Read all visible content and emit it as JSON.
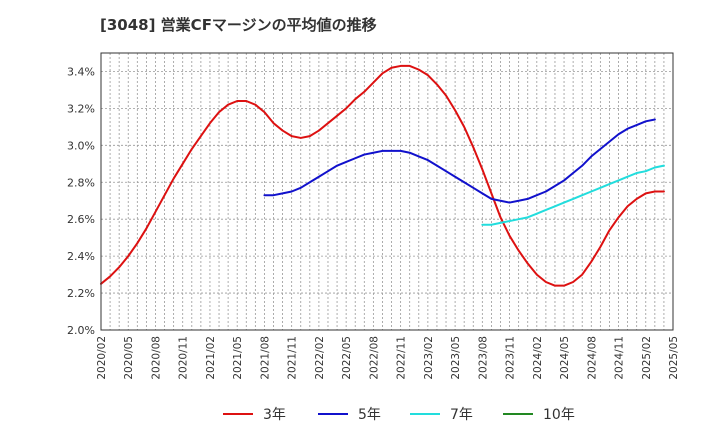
{
  "chart_data": {
    "type": "line",
    "title": "[3048]  営業CFマージンの平均値の推移",
    "xlabel": "",
    "ylabel": "",
    "x_start": "2020/02",
    "x_end": "2025/05",
    "x_ticks": [
      "2020/02",
      "2020/05",
      "2020/08",
      "2020/11",
      "2021/02",
      "2021/05",
      "2021/08",
      "2021/11",
      "2022/02",
      "2022/05",
      "2022/08",
      "2022/11",
      "2023/02",
      "2023/05",
      "2023/08",
      "2023/11",
      "2024/02",
      "2024/05",
      "2024/08",
      "2024/11",
      "2025/02",
      "2025/05"
    ],
    "y_ticks": [
      "2.0%",
      "2.2%",
      "2.4%",
      "2.6%",
      "2.8%",
      "3.0%",
      "3.2%",
      "3.4%"
    ],
    "ylim": [
      2.0,
      3.5
    ],
    "grid": true,
    "legend_placement": "bottom",
    "series": [
      {
        "name": "3年",
        "color": "#dd1111",
        "points": [
          [
            "2020/02",
            2.25
          ],
          [
            "2020/03",
            2.29
          ],
          [
            "2020/04",
            2.34
          ],
          [
            "2020/05",
            2.4
          ],
          [
            "2020/06",
            2.47
          ],
          [
            "2020/07",
            2.55
          ],
          [
            "2020/08",
            2.64
          ],
          [
            "2020/09",
            2.73
          ],
          [
            "2020/10",
            2.82
          ],
          [
            "2020/11",
            2.9
          ],
          [
            "2020/12",
            2.98
          ],
          [
            "2021/01",
            3.05
          ],
          [
            "2021/02",
            3.12
          ],
          [
            "2021/03",
            3.18
          ],
          [
            "2021/04",
            3.22
          ],
          [
            "2021/05",
            3.24
          ],
          [
            "2021/06",
            3.24
          ],
          [
            "2021/07",
            3.22
          ],
          [
            "2021/08",
            3.18
          ],
          [
            "2021/09",
            3.12
          ],
          [
            "2021/10",
            3.08
          ],
          [
            "2021/11",
            3.05
          ],
          [
            "2021/12",
            3.04
          ],
          [
            "2022/01",
            3.05
          ],
          [
            "2022/02",
            3.08
          ],
          [
            "2022/03",
            3.12
          ],
          [
            "2022/04",
            3.16
          ],
          [
            "2022/05",
            3.2
          ],
          [
            "2022/06",
            3.25
          ],
          [
            "2022/07",
            3.29
          ],
          [
            "2022/08",
            3.34
          ],
          [
            "2022/09",
            3.39
          ],
          [
            "2022/10",
            3.42
          ],
          [
            "2022/11",
            3.43
          ],
          [
            "2022/12",
            3.43
          ],
          [
            "2023/01",
            3.41
          ],
          [
            "2023/02",
            3.38
          ],
          [
            "2023/03",
            3.33
          ],
          [
            "2023/04",
            3.27
          ],
          [
            "2023/05",
            3.19
          ],
          [
            "2023/06",
            3.1
          ],
          [
            "2023/07",
            2.99
          ],
          [
            "2023/08",
            2.87
          ],
          [
            "2023/09",
            2.74
          ],
          [
            "2023/10",
            2.61
          ],
          [
            "2023/11",
            2.51
          ],
          [
            "2023/12",
            2.43
          ],
          [
            "2024/01",
            2.36
          ],
          [
            "2024/02",
            2.3
          ],
          [
            "2024/03",
            2.26
          ],
          [
            "2024/04",
            2.24
          ],
          [
            "2024/05",
            2.24
          ],
          [
            "2024/06",
            2.26
          ],
          [
            "2024/07",
            2.3
          ],
          [
            "2024/08",
            2.37
          ],
          [
            "2024/09",
            2.45
          ],
          [
            "2024/10",
            2.54
          ],
          [
            "2024/11",
            2.61
          ],
          [
            "2024/12",
            2.67
          ],
          [
            "2025/01",
            2.71
          ],
          [
            "2025/02",
            2.74
          ],
          [
            "2025/03",
            2.75
          ],
          [
            "2025/04",
            2.75
          ]
        ]
      },
      {
        "name": "5年",
        "color": "#1111cc",
        "points": [
          [
            "2021/08",
            2.73
          ],
          [
            "2021/09",
            2.73
          ],
          [
            "2021/10",
            2.74
          ],
          [
            "2021/11",
            2.75
          ],
          [
            "2021/12",
            2.77
          ],
          [
            "2022/01",
            2.8
          ],
          [
            "2022/02",
            2.83
          ],
          [
            "2022/03",
            2.86
          ],
          [
            "2022/04",
            2.89
          ],
          [
            "2022/05",
            2.91
          ],
          [
            "2022/06",
            2.93
          ],
          [
            "2022/07",
            2.95
          ],
          [
            "2022/08",
            2.96
          ],
          [
            "2022/09",
            2.97
          ],
          [
            "2022/10",
            2.97
          ],
          [
            "2022/11",
            2.97
          ],
          [
            "2022/12",
            2.96
          ],
          [
            "2023/01",
            2.94
          ],
          [
            "2023/02",
            2.92
          ],
          [
            "2023/03",
            2.89
          ],
          [
            "2023/04",
            2.86
          ],
          [
            "2023/05",
            2.83
          ],
          [
            "2023/06",
            2.8
          ],
          [
            "2023/07",
            2.77
          ],
          [
            "2023/08",
            2.74
          ],
          [
            "2023/09",
            2.71
          ],
          [
            "2023/10",
            2.7
          ],
          [
            "2023/11",
            2.69
          ],
          [
            "2023/12",
            2.7
          ],
          [
            "2024/01",
            2.71
          ],
          [
            "2024/02",
            2.73
          ],
          [
            "2024/03",
            2.75
          ],
          [
            "2024/04",
            2.78
          ],
          [
            "2024/05",
            2.81
          ],
          [
            "2024/06",
            2.85
          ],
          [
            "2024/07",
            2.89
          ],
          [
            "2024/08",
            2.94
          ],
          [
            "2024/09",
            2.98
          ],
          [
            "2024/10",
            3.02
          ],
          [
            "2024/11",
            3.06
          ],
          [
            "2024/12",
            3.09
          ],
          [
            "2025/01",
            3.11
          ],
          [
            "2025/02",
            3.13
          ],
          [
            "2025/03",
            3.14
          ]
        ]
      },
      {
        "name": "7年",
        "color": "#22dddd",
        "points": [
          [
            "2023/08",
            2.57
          ],
          [
            "2023/09",
            2.57
          ],
          [
            "2023/10",
            2.58
          ],
          [
            "2023/11",
            2.59
          ],
          [
            "2023/12",
            2.6
          ],
          [
            "2024/01",
            2.61
          ],
          [
            "2024/02",
            2.63
          ],
          [
            "2024/03",
            2.65
          ],
          [
            "2024/04",
            2.67
          ],
          [
            "2024/05",
            2.69
          ],
          [
            "2024/06",
            2.71
          ],
          [
            "2024/07",
            2.73
          ],
          [
            "2024/08",
            2.75
          ],
          [
            "2024/09",
            2.77
          ],
          [
            "2024/10",
            2.79
          ],
          [
            "2024/11",
            2.81
          ],
          [
            "2024/12",
            2.83
          ],
          [
            "2025/01",
            2.85
          ],
          [
            "2025/02",
            2.86
          ],
          [
            "2025/03",
            2.88
          ],
          [
            "2025/04",
            2.89
          ]
        ]
      },
      {
        "name": "10年",
        "color": "#228822",
        "points": []
      }
    ]
  }
}
